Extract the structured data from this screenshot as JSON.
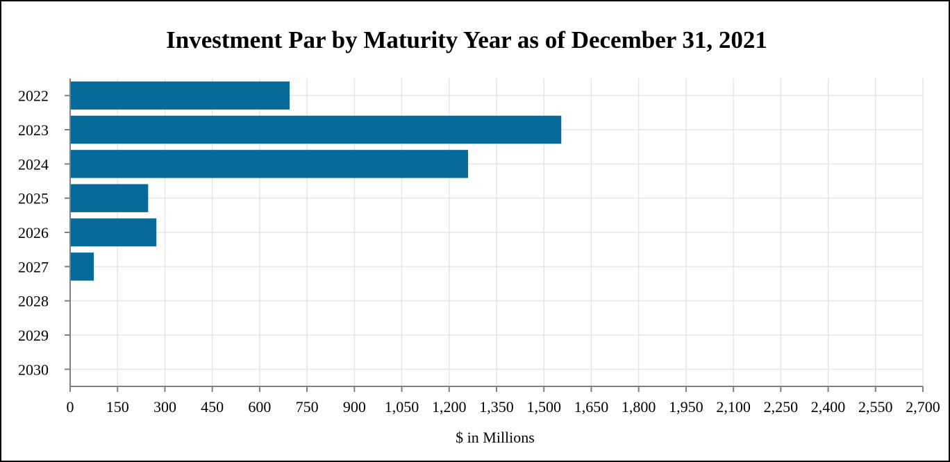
{
  "chart_data": {
    "type": "bar",
    "orientation": "horizontal",
    "title": "Investment Par by Maturity Year as of December 31, 2021",
    "xlabel": "$ in Millions",
    "ylabel": "",
    "categories": [
      "2022",
      "2023",
      "2024",
      "2025",
      "2026",
      "2027",
      "2028",
      "2029",
      "2030"
    ],
    "values": [
      695,
      1555,
      1260,
      247,
      273,
      75,
      0,
      0,
      0
    ],
    "xlim": [
      0,
      2700
    ],
    "xticks": [
      0,
      150,
      300,
      450,
      600,
      750,
      900,
      1050,
      1200,
      1350,
      1500,
      1650,
      1800,
      1950,
      2100,
      2250,
      2400,
      2550,
      2700
    ],
    "xtick_labels": [
      "0",
      "150",
      "300",
      "450",
      "600",
      "750",
      "900",
      "1,050",
      "1,200",
      "1,350",
      "1,500",
      "1,650",
      "1,800",
      "1,950",
      "2,100",
      "2,250",
      "2,400",
      "2,550",
      "2,700"
    ],
    "grid": true,
    "bar_color": "#066a9a",
    "grid_color": "#e6e6e6",
    "axis_color": "#808080"
  }
}
